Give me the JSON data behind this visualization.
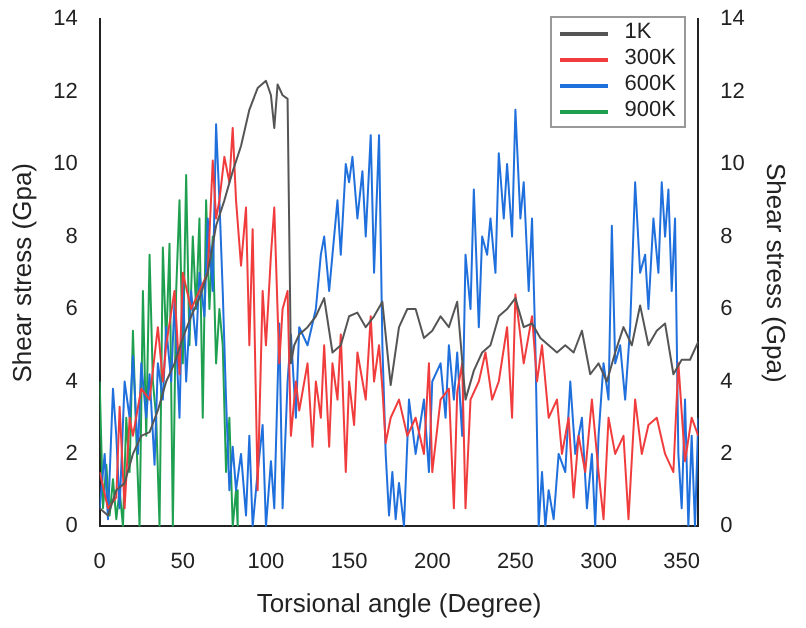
{
  "chart_data": {
    "type": "line",
    "xlabel": "Torsional angle (Degree)",
    "ylabel": "Shear stress (Gpa)",
    "y2label": "Shear stress (Gpa)",
    "xlim": [
      0,
      360
    ],
    "xticks": [
      0,
      50,
      100,
      150,
      200,
      250,
      300,
      350
    ],
    "ylim": [
      0,
      14
    ],
    "yticks": [
      0,
      2,
      4,
      6,
      8,
      10,
      12,
      14
    ],
    "y2lim": [
      0,
      14
    ],
    "y2ticks": [
      0,
      2,
      4,
      6,
      8,
      10,
      12,
      14
    ],
    "legend": "top right",
    "marker": "none",
    "line_style": "solid",
    "series": [
      {
        "name": "1K",
        "color": "#555555",
        "x": [
          0,
          5,
          10,
          15,
          20,
          25,
          30,
          35,
          40,
          45,
          50,
          55,
          60,
          65,
          70,
          75,
          80,
          85,
          90,
          95,
          100,
          103,
          105,
          107,
          110,
          113,
          115,
          117,
          120,
          125,
          130,
          135,
          140,
          145,
          150,
          155,
          160,
          165,
          170,
          175,
          180,
          185,
          190,
          195,
          200,
          205,
          210,
          215,
          220,
          225,
          230,
          235,
          240,
          245,
          250,
          255,
          260,
          265,
          270,
          275,
          280,
          285,
          290,
          295,
          300,
          305,
          310,
          315,
          320,
          325,
          330,
          335,
          340,
          345,
          350,
          355,
          360
        ],
        "values": [
          0.5,
          0.3,
          1.0,
          1.2,
          2.0,
          2.5,
          2.6,
          3.2,
          4.0,
          4.5,
          5.2,
          5.8,
          6.3,
          7.0,
          8.3,
          9.0,
          9.8,
          10.5,
          11.5,
          12.1,
          12.3,
          11.9,
          11.0,
          12.2,
          11.9,
          11.8,
          4.5,
          5.0,
          5.3,
          5.5,
          5.8,
          6.3,
          4.8,
          5.0,
          5.8,
          5.9,
          5.5,
          5.8,
          6.2,
          3.9,
          5.5,
          6.0,
          6.0,
          5.2,
          5.4,
          5.8,
          5.5,
          6.2,
          3.5,
          4.3,
          4.8,
          5.0,
          5.8,
          6.0,
          6.3,
          5.5,
          5.6,
          5.2,
          5.0,
          4.8,
          5.0,
          4.8,
          5.4,
          4.2,
          4.5,
          4.0,
          4.8,
          5.5,
          5.0,
          6.1,
          5.0,
          5.4,
          5.6,
          4.2,
          4.6,
          4.6,
          5.1
        ]
      },
      {
        "name": "300K",
        "color": "#f03c3c",
        "x": [
          0,
          5,
          10,
          12,
          15,
          18,
          20,
          25,
          30,
          35,
          38,
          40,
          45,
          48,
          50,
          55,
          60,
          65,
          68,
          70,
          72,
          75,
          78,
          80,
          82,
          85,
          88,
          90,
          92,
          95,
          98,
          100,
          103,
          105,
          108,
          110,
          113,
          115,
          118,
          120,
          125,
          128,
          130,
          133,
          135,
          138,
          140,
          143,
          145,
          148,
          150,
          153,
          155,
          160,
          163,
          165,
          168,
          170,
          172,
          175,
          180,
          185,
          190,
          195,
          198,
          200,
          205,
          210,
          213,
          215,
          218,
          220,
          223,
          228,
          232,
          236,
          240,
          245,
          248,
          250,
          255,
          260,
          263,
          266,
          270,
          275,
          278,
          282,
          285,
          288,
          292,
          296,
          300,
          303,
          306,
          310,
          315,
          318,
          322,
          326,
          330,
          335,
          340,
          345,
          348,
          352,
          356,
          360
        ],
        "values": [
          1.5,
          0.5,
          0.8,
          3.3,
          0.5,
          3.0,
          2.5,
          3.8,
          3.5,
          5.5,
          4.0,
          5.0,
          6.5,
          4.2,
          7.0,
          6.0,
          6.5,
          7.0,
          10.1,
          8.5,
          9.0,
          10.2,
          9.5,
          11.0,
          9.0,
          7.2,
          8.8,
          5.0,
          8.2,
          1.0,
          6.5,
          5.0,
          7.5,
          8.8,
          4.5,
          6.0,
          6.5,
          2.5,
          4.0,
          3.2,
          4.5,
          2.2,
          4.0,
          3.0,
          5.0,
          2.2,
          4.5,
          3.5,
          5.3,
          1.5,
          4.0,
          2.8,
          4.8,
          3.5,
          5.8,
          4.0,
          5.0,
          3.8,
          2.3,
          3.0,
          3.5,
          2.5,
          3.0,
          2.0,
          4.5,
          1.5,
          3.5,
          3.8,
          0.5,
          3.7,
          4.5,
          0.5,
          3.5,
          4.0,
          4.8,
          3.5,
          4.0,
          5.5,
          3.0,
          6.4,
          4.5,
          5.8,
          4.0,
          5.0,
          3.0,
          3.5,
          2.0,
          3.0,
          0.8,
          2.5,
          1.5,
          3.5,
          1.5,
          0.2,
          3.0,
          2.0,
          2.5,
          0.2,
          3.5,
          2.0,
          2.8,
          3.0,
          2.0,
          1.5,
          4.5,
          1.8,
          3.0,
          2.5
        ]
      },
      {
        "name": "600K",
        "color": "#1f6fdc",
        "x": [
          0,
          3,
          5,
          8,
          10,
          12,
          15,
          18,
          20,
          23,
          25,
          28,
          30,
          33,
          35,
          38,
          40,
          43,
          45,
          48,
          50,
          52,
          55,
          58,
          60,
          63,
          65,
          68,
          70,
          72,
          74,
          76,
          78,
          80,
          82,
          85,
          88,
          90,
          92,
          95,
          98,
          100,
          103,
          105,
          108,
          110,
          113,
          115,
          118,
          120,
          125,
          130,
          133,
          135,
          138,
          140,
          143,
          145,
          148,
          150,
          152,
          155,
          158,
          160,
          163,
          165,
          168,
          170,
          172,
          174,
          176,
          178,
          180,
          183,
          186,
          190,
          195,
          198,
          200,
          205,
          208,
          210,
          213,
          215,
          218,
          220,
          223,
          225,
          228,
          230,
          233,
          235,
          238,
          240,
          243,
          245,
          248,
          250,
          253,
          255,
          258,
          260,
          262,
          264,
          266,
          268,
          270,
          273,
          276,
          280,
          283,
          286,
          290,
          293,
          296,
          298,
          300,
          303,
          306,
          308,
          310,
          313,
          316,
          319,
          322,
          325,
          328,
          330,
          333,
          336,
          338,
          340,
          342,
          344,
          346,
          348,
          350,
          352,
          354,
          356,
          358,
          360
        ],
        "values": [
          0.5,
          2.0,
          0.2,
          3.8,
          2.5,
          0.5,
          4.0,
          3.0,
          4.7,
          2.0,
          4.5,
          3.0,
          4.2,
          1.7,
          4.5,
          3.5,
          5.5,
          4.0,
          6.2,
          3.0,
          6.8,
          4.0,
          6.5,
          5.0,
          7.0,
          5.8,
          8.5,
          6.5,
          11.1,
          9.0,
          6.5,
          3.5,
          1.0,
          2.2,
          1.0,
          2.0,
          0.3,
          2.5,
          0.0,
          1.5,
          2.8,
          0.0,
          1.8,
          0.5,
          5.6,
          0.5,
          4.0,
          5.3,
          3.0,
          5.5,
          5.0,
          6.0,
          7.5,
          8.0,
          6.5,
          7.5,
          9.0,
          7.5,
          10.0,
          9.5,
          10.2,
          8.5,
          9.8,
          8.0,
          10.8,
          7.0,
          10.8,
          5.0,
          2.0,
          0.3,
          1.5,
          0.2,
          1.2,
          0.0,
          3.5,
          2.0,
          3.5,
          1.5,
          4.0,
          4.5,
          3.0,
          5.0,
          3.5,
          4.8,
          2.5,
          7.5,
          6.0,
          9.3,
          5.5,
          8.0,
          7.5,
          8.5,
          7.0,
          10.3,
          8.5,
          10.0,
          8.0,
          11.5,
          8.5,
          9.5,
          6.5,
          8.5,
          5.0,
          0.0,
          1.5,
          0.0,
          1.0,
          0.2,
          2.0,
          1.5,
          4.0,
          2.0,
          3.0,
          0.5,
          2.0,
          0.0,
          2.5,
          4.5,
          3.5,
          8.3,
          4.5,
          5.0,
          3.5,
          5.5,
          9.5,
          7.0,
          7.5,
          6.0,
          8.5,
          7.0,
          9.5,
          8.0,
          9.3,
          6.5,
          8.5,
          2.0,
          0.5,
          3.5,
          0.0,
          2.5,
          0.0,
          3.0
        ]
      },
      {
        "name": "900K",
        "color": "#1fa050",
        "x": [
          0,
          2,
          4,
          6,
          8,
          10,
          12,
          14,
          16,
          18,
          20,
          22,
          24,
          26,
          28,
          30,
          32,
          34,
          36,
          38,
          40,
          42,
          44,
          46,
          48,
          50,
          52,
          54,
          56,
          58,
          60,
          62,
          64,
          66,
          68,
          70,
          72,
          74,
          76,
          78,
          80,
          82,
          83
        ],
        "values": [
          4.0,
          0.5,
          1.7,
          0.3,
          1.3,
          0.2,
          1.0,
          0.0,
          3.0,
          1.5,
          5.4,
          2.5,
          0.0,
          6.5,
          2.5,
          7.5,
          4.0,
          3.0,
          0.0,
          7.7,
          5.0,
          7.8,
          0.0,
          6.5,
          9.0,
          4.5,
          9.7,
          5.0,
          8.0,
          6.0,
          8.5,
          3.0,
          9.0,
          6.0,
          8.0,
          4.5,
          6.0,
          5.0,
          1.5,
          3.0,
          0.0,
          1.0,
          0.0
        ]
      }
    ]
  }
}
